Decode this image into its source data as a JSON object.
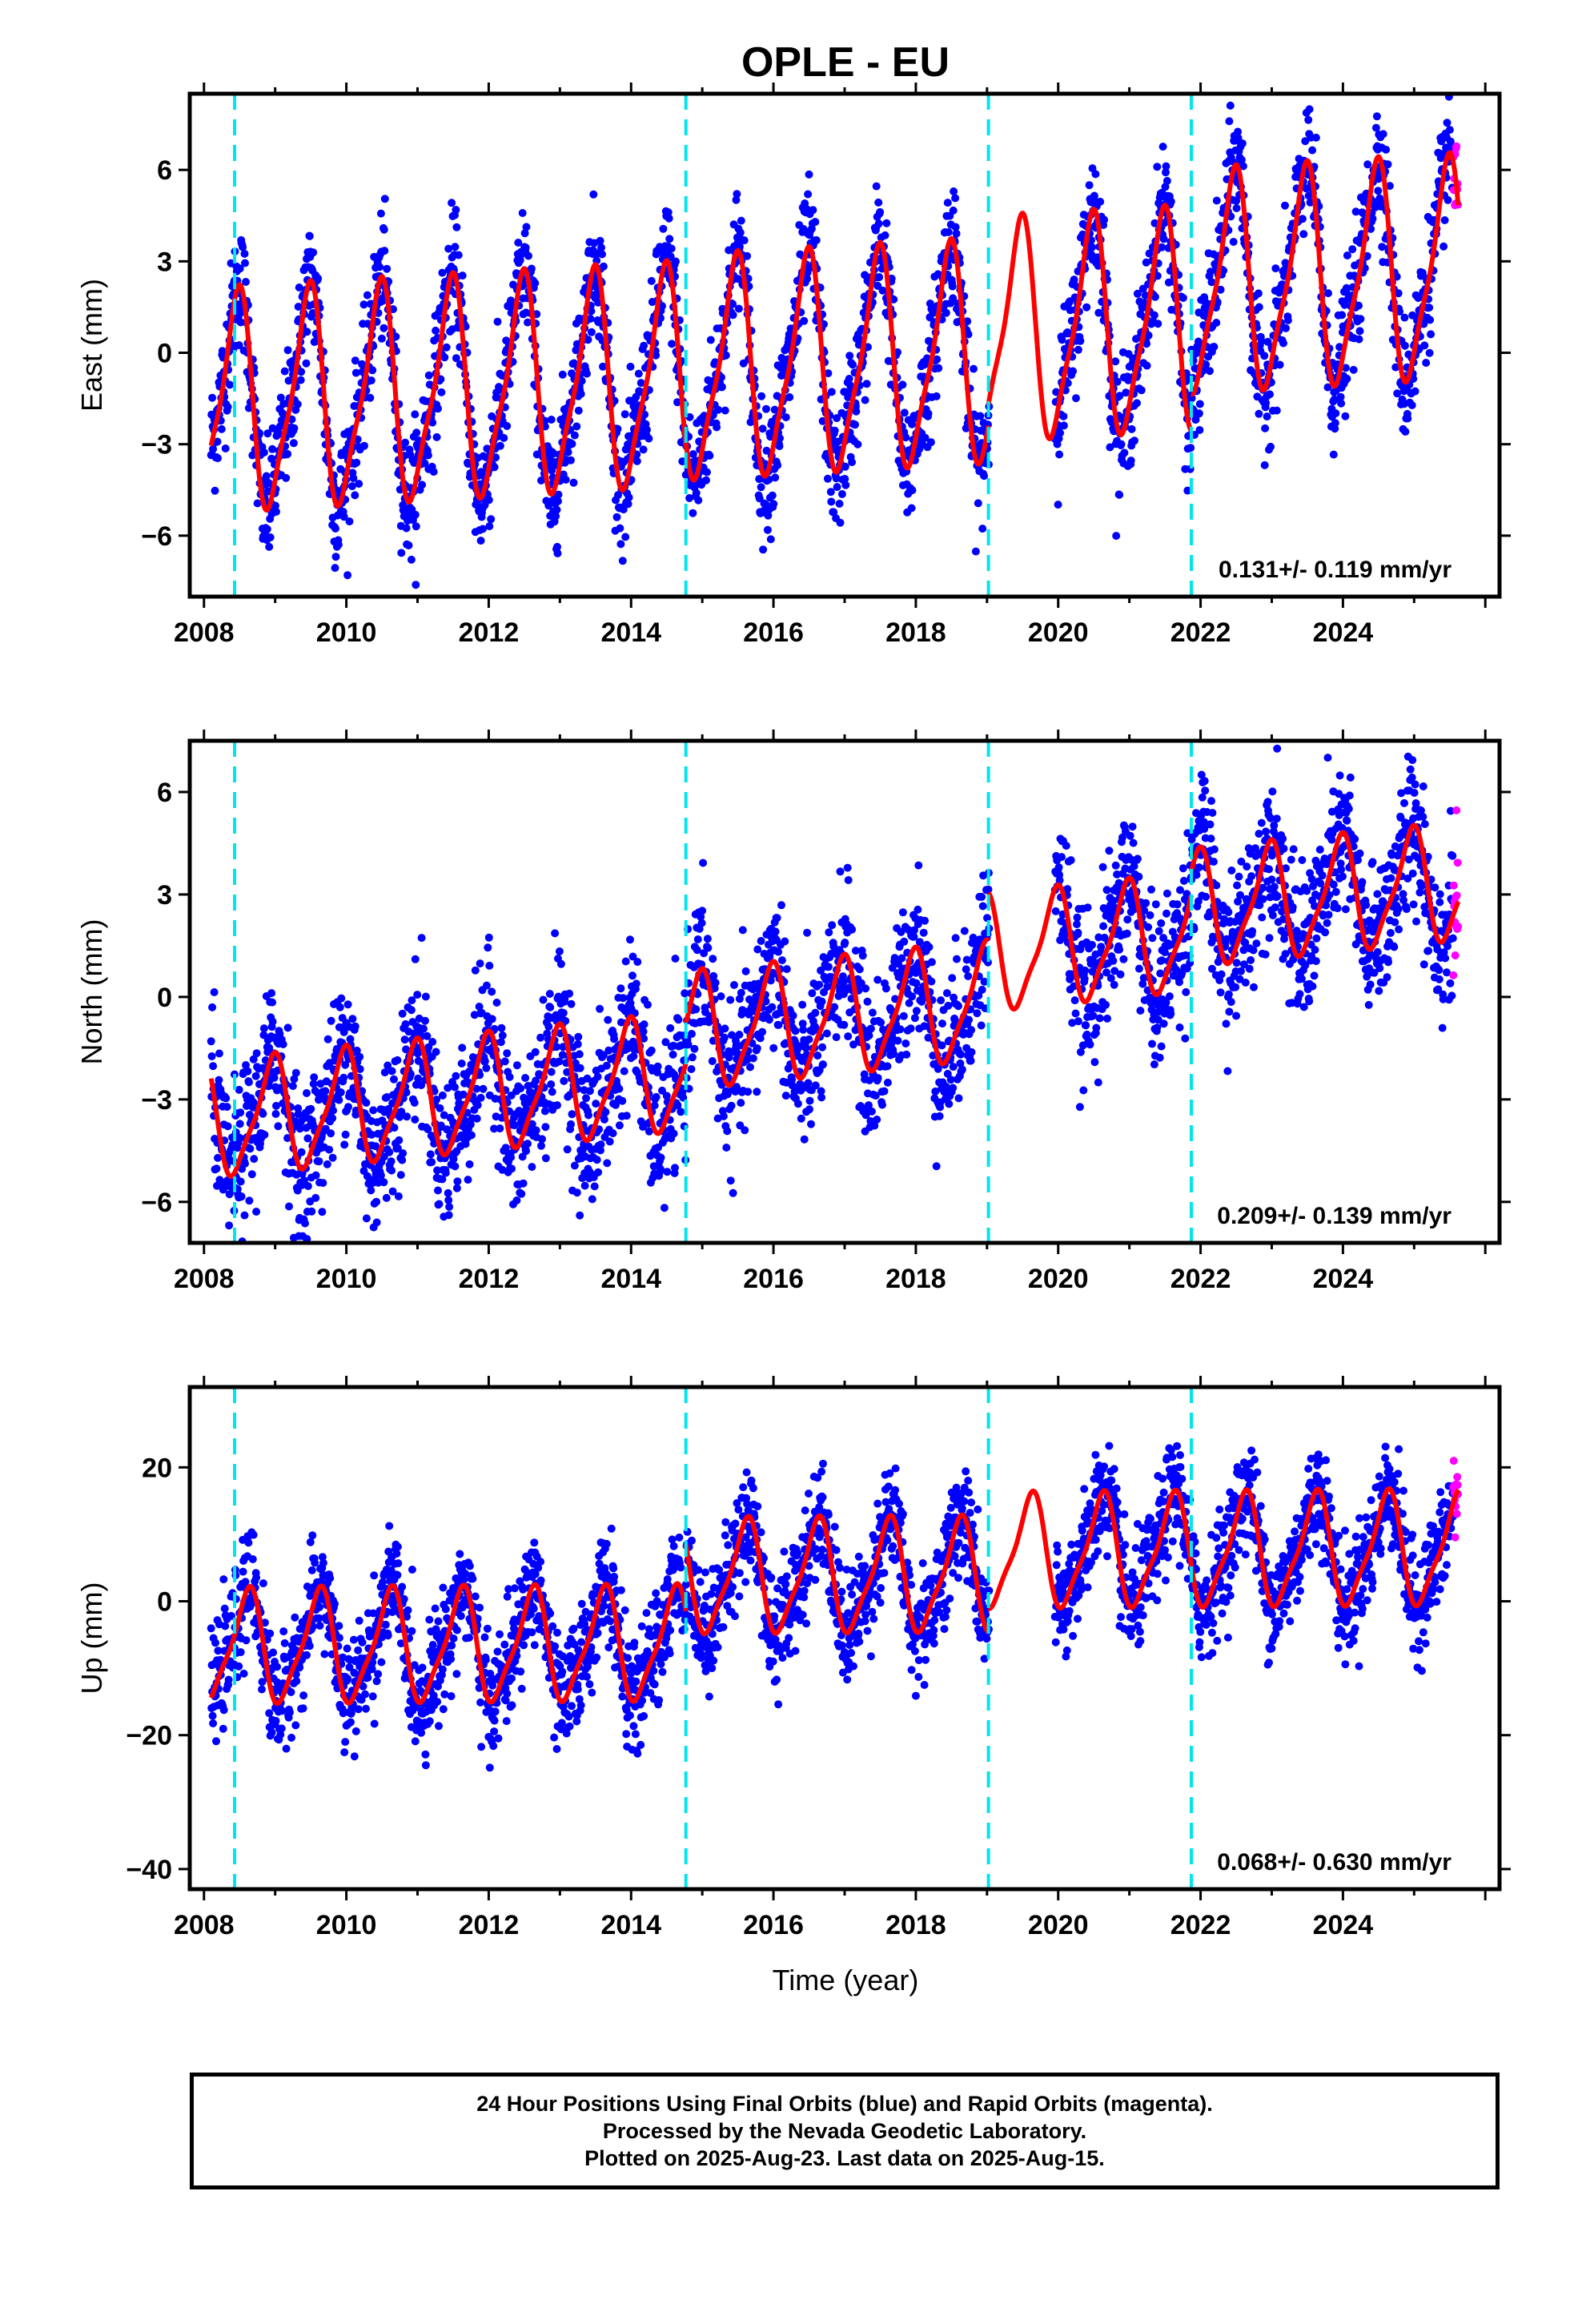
{
  "title": "OPLE - EU",
  "xlabel": "Time (year)",
  "colors": {
    "final_orbits": "#0000ff",
    "rapid_orbits": "#ff00ff",
    "model": "#ff0000",
    "events": "#00e5ee",
    "frame": "#000000"
  },
  "footer": {
    "line1": "24 Hour Positions Using Final Orbits (blue) and Rapid Orbits (magenta).",
    "line2": "Processed by the Nevada Geodetic Laboratory.",
    "line3": "Plotted on 2025-Aug-23. Last data on 2025-Aug-15."
  },
  "chart_data": [
    {
      "type": "scatter",
      "component": "East",
      "ylabel": "East (mm)",
      "rate_label": "0.131+/- 0.119 mm/yr",
      "xlim": [
        2007.8,
        2026.2
      ],
      "ylim": [
        -8,
        8.5
      ],
      "xticks": [
        "2008",
        "2010",
        "2012",
        "2014",
        "2016",
        "2018",
        "2020",
        "2022",
        "2024"
      ],
      "yticks": [
        "-6",
        "-3",
        "0",
        "3",
        "6"
      ],
      "event_lines": [
        2008.43,
        2014.77,
        2019.02,
        2021.87
      ],
      "data_start": 2008.1,
      "data_end": 2025.62,
      "gap": [
        2019.03,
        2019.95
      ],
      "rapid_start": 2025.55,
      "seasonal": {
        "amplitude": 3.4,
        "phase_year": 0.45,
        "scatter": 1.0
      },
      "segment_offsets": [
        -0.7,
        -0.5,
        0.2,
        1.4
      ],
      "rate_mm_per_yr": 0.131
    },
    {
      "type": "scatter",
      "component": "North",
      "ylabel": "North (mm)",
      "rate_label": "0.209+/- 0.139 mm/yr",
      "xlim": [
        2007.8,
        2026.2
      ],
      "ylim": [
        -7.2,
        7.5
      ],
      "xticks": [
        "2008",
        "2010",
        "2012",
        "2014",
        "2016",
        "2018",
        "2020",
        "2022",
        "2024"
      ],
      "yticks": [
        "-6",
        "-3",
        "0",
        "3",
        "6"
      ],
      "event_lines": [
        2008.43,
        2014.77,
        2019.02,
        2021.87
      ],
      "data_start": 2008.1,
      "data_end": 2025.62,
      "gap": [
        2019.03,
        2019.95
      ],
      "rapid_start": 2025.55,
      "seasonal": {
        "amplitude": 1.6,
        "phase_year": 0.95,
        "scatter": 1.1
      },
      "segment_offsets": [
        -2.0,
        -0.8,
        0.6,
        1.3
      ],
      "rate_mm_per_yr": 0.209
    },
    {
      "type": "scatter",
      "component": "Up",
      "ylabel": "Up (mm)",
      "rate_label": "0.068+/- 0.630 mm/yr",
      "xlim": [
        2007.8,
        2026.2
      ],
      "ylim": [
        -43,
        32
      ],
      "xticks": [
        "2008",
        "2010",
        "2012",
        "2014",
        "2016",
        "2018",
        "2020",
        "2022",
        "2024"
      ],
      "yticks": [
        "-40",
        "-20",
        "0",
        "20"
      ],
      "event_lines": [
        2008.43,
        2014.77,
        2019.02,
        2021.87
      ],
      "data_start": 2008.1,
      "data_end": 2025.62,
      "gap": [
        2019.03,
        2019.95
      ],
      "rapid_start": 2025.55,
      "seasonal": {
        "amplitude": 8.0,
        "phase_year": 0.6,
        "scatter": 4.0
      },
      "segment_offsets": [
        -6.5,
        3.5,
        7.0,
        7.0
      ],
      "rate_mm_per_yr": 0.068
    }
  ]
}
